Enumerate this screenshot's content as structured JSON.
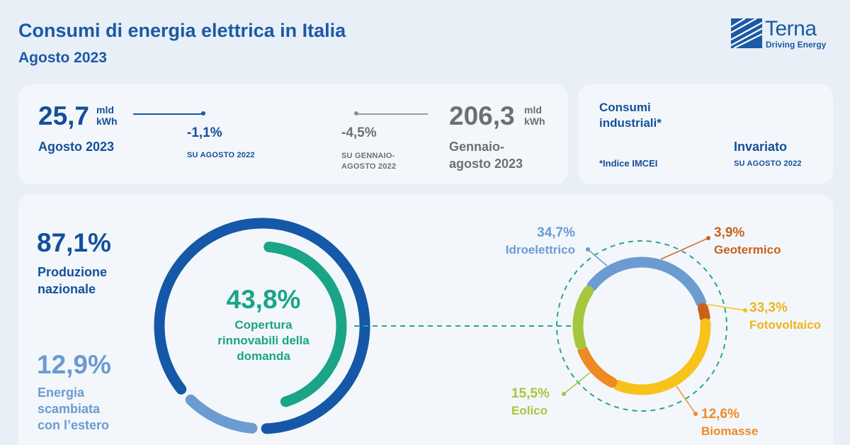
{
  "header": {
    "title": "Consumi di energia elettrica in Italia",
    "subtitle": "Agosto 2023",
    "logo_name": "Terna",
    "logo_tagline": "Driving Energy"
  },
  "monthly": {
    "value": "25,7",
    "unit_line1": "mld",
    "unit_line2": "kWh",
    "period": "Agosto 2023",
    "change": "-1,1%",
    "change_ref": "SU AGOSTO 2022"
  },
  "ytd": {
    "value": "206,3",
    "unit_line1": "mld",
    "unit_line2": "kWh",
    "period_line1": "Gennaio-",
    "period_line2": "agosto 2023",
    "change": "-4,5%",
    "change_ref_line1": "SU GENNAIO-",
    "change_ref_line2": "AGOSTO 2022"
  },
  "industrial": {
    "label_line1": "Consumi",
    "label_line2": "industriali*",
    "note": "*Indice IMCEI",
    "status": "Invariato",
    "status_ref": "SU AGOSTO 2022"
  },
  "production": {
    "national_pct": "87,1%",
    "national_label_line1": "Produzione",
    "national_label_line2": "nazionale",
    "exchange_pct": "12,9%",
    "exchange_label_line1": "Energia",
    "exchange_label_line2": "scambiata",
    "exchange_label_line3": "con l’estero"
  },
  "renewables": {
    "coverage_pct": "43,8%",
    "coverage_label_line1": "Copertura",
    "coverage_label_line2": "rinnovabili della",
    "coverage_label_line3": "domanda"
  },
  "chart_data": [
    {
      "type": "pie",
      "title": "",
      "slices": [
        {
          "label": "Produzione nazionale",
          "value": 87.1
        },
        {
          "label": "Energia scambiata con l’estero",
          "value": 12.9
        }
      ],
      "inner_arc": {
        "label": "Copertura rinnovabili della domanda",
        "value": 43.8
      }
    },
    {
      "type": "pie",
      "title": "",
      "slices": [
        {
          "label": "Idroelettrico",
          "value": 34.7,
          "display": "34,7%",
          "color": "#6b9bd0"
        },
        {
          "label": "Geotermico",
          "value": 3.9,
          "display": "3,9%",
          "color": "#c8621b"
        },
        {
          "label": "Fotovoltaico",
          "value": 33.3,
          "display": "33,3%",
          "color": "#f7c21c"
        },
        {
          "label": "Biomasse",
          "value": 12.6,
          "display": "12,6%",
          "color": "#ee8a24"
        },
        {
          "label": "Eolico",
          "value": 15.5,
          "display": "15,5%",
          "color": "#a6c73d"
        }
      ]
    }
  ],
  "colors": {
    "brand_blue": "#1a5aa6",
    "dark_ring": "#1558a7",
    "light_ring": "#6b9bd0",
    "renewable_green": "#1aa488",
    "grey_text": "#6f6f6f"
  }
}
